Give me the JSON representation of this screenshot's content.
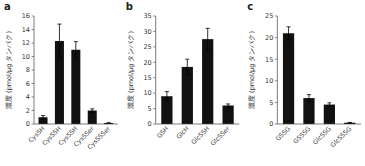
{
  "chart_data": [
    {
      "type": "bar",
      "title": "a",
      "categories": [
        "CysSH",
        "CysSSH",
        "CysSSH",
        "CysSSer",
        "CysSSSer"
      ],
      "values": [
        1.0,
        12.3,
        11.0,
        2.0,
        0.15
      ],
      "errors": [
        0.25,
        2.5,
        1.2,
        0.25,
        0.04
      ],
      "color": "#111111",
      "ylim": [
        0,
        16
      ],
      "yticks": [
        0,
        2,
        4,
        6,
        8,
        10,
        12,
        14,
        16
      ],
      "ylabel": "濃度 (pmol/μg タンパク)",
      "grid": false
    },
    {
      "type": "bar",
      "title": "b",
      "categories": [
        "GSH",
        "GlcH",
        "GlcSSH",
        "GlcSSer"
      ],
      "values": [
        9.0,
        18.5,
        27.5,
        6.0
      ],
      "errors": [
        1.5,
        2.5,
        3.5,
        0.5
      ],
      "color": "#111111",
      "ylim": [
        0,
        35
      ],
      "yticks": [
        0,
        5,
        10,
        15,
        20,
        25,
        30,
        35
      ],
      "ylabel": "濃度 (pmol/μg タンパク)",
      "grid": false
    },
    {
      "type": "bar",
      "title": "c",
      "categories": [
        "GSSG",
        "GSSSG",
        "GlcSSG",
        "GlcSSSG"
      ],
      "values": [
        21.0,
        6.0,
        4.5,
        0.3
      ],
      "errors": [
        1.5,
        0.8,
        0.4,
        0.05
      ],
      "color": "#111111",
      "ylim": [
        0,
        25
      ],
      "yticks": [
        0,
        5,
        10,
        15,
        20,
        25
      ],
      "ylabel": "濃度 (pmol/μg タンパク)",
      "grid": false
    }
  ]
}
